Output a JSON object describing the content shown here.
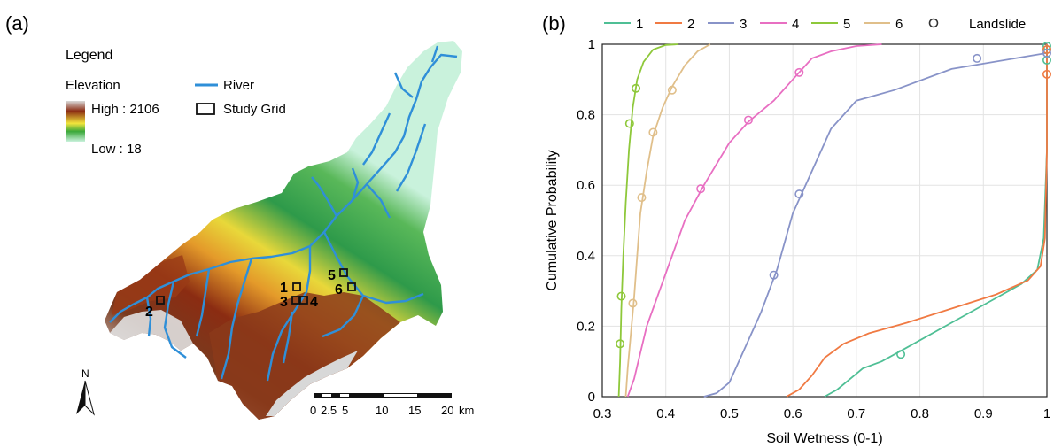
{
  "panel_a": {
    "label": "(a)",
    "legend": {
      "title": "Legend",
      "elevation_title": "Elevation",
      "high_label": "High : 2106",
      "low_label": "Low : 18",
      "river_label": "River",
      "grid_label": "Study Grid"
    },
    "grid_labels": [
      "1",
      "2",
      "3",
      "4",
      "5",
      "6"
    ],
    "north": "N",
    "scalebar": {
      "ticks": [
        "0",
        "2.5",
        "5",
        "10",
        "15",
        "20"
      ],
      "unit": "km"
    },
    "colors": {
      "river": "#2f8fd8",
      "low": "#c9f2dc",
      "mid": "#f2e53c",
      "high": "#8b2c12",
      "peak": "#d9d9d9"
    }
  },
  "panel_b": {
    "label": "(b)",
    "landslide_label": "Landslide"
  },
  "chart_data": {
    "type": "line",
    "title": "",
    "xlabel": "Soil Wetness (0-1)",
    "ylabel": "Cumulative Probability",
    "xlim": [
      0.3,
      1.0
    ],
    "ylim": [
      0,
      1
    ],
    "xticks": [
      "0.3",
      "0.4",
      "0.5",
      "0.6",
      "0.7",
      "0.8",
      "0.9",
      "1"
    ],
    "yticks": [
      "0",
      "0.2",
      "0.4",
      "0.6",
      "0.8",
      "1"
    ],
    "grid": true,
    "legend_position": "top",
    "series": [
      {
        "name": "1",
        "color": "#4fbf95",
        "x": [
          0.65,
          0.67,
          0.69,
          0.71,
          0.74,
          0.77,
          0.8,
          0.84,
          0.88,
          0.92,
          0.96,
          0.985,
          0.995,
          1.0,
          1.0
        ],
        "y": [
          0,
          0.02,
          0.05,
          0.08,
          0.1,
          0.13,
          0.16,
          0.2,
          0.24,
          0.28,
          0.32,
          0.36,
          0.45,
          0.7,
          1.0
        ],
        "landslides": [
          [
            0.77,
            0.12
          ],
          [
            1.0,
            0.955
          ],
          [
            1.0,
            0.985
          ],
          [
            1.0,
            0.995
          ]
        ]
      },
      {
        "name": "2",
        "color": "#f07a43",
        "x": [
          0.59,
          0.61,
          0.63,
          0.65,
          0.68,
          0.72,
          0.78,
          0.85,
          0.92,
          0.97,
          0.99,
          0.997,
          1.0,
          1.0
        ],
        "y": [
          0,
          0.02,
          0.06,
          0.11,
          0.15,
          0.18,
          0.21,
          0.25,
          0.29,
          0.33,
          0.37,
          0.45,
          0.7,
          1.0
        ],
        "landslides": [
          [
            1.0,
            0.915
          ],
          [
            1.0,
            0.985
          ]
        ]
      },
      {
        "name": "3",
        "color": "#8893c8",
        "x": [
          0.46,
          0.48,
          0.5,
          0.52,
          0.55,
          0.575,
          0.6,
          0.63,
          0.66,
          0.7,
          0.76,
          0.85,
          0.95,
          1.0
        ],
        "y": [
          0,
          0.01,
          0.04,
          0.12,
          0.24,
          0.36,
          0.52,
          0.64,
          0.76,
          0.84,
          0.87,
          0.93,
          0.96,
          0.975
        ],
        "landslides": [
          [
            0.57,
            0.345
          ],
          [
            0.61,
            0.575
          ],
          [
            0.89,
            0.96
          ],
          [
            1.0,
            0.975
          ]
        ]
      },
      {
        "name": "4",
        "color": "#e86fc2",
        "x": [
          0.34,
          0.35,
          0.37,
          0.4,
          0.43,
          0.46,
          0.5,
          0.53,
          0.57,
          0.61,
          0.63,
          0.66,
          0.7,
          0.74
        ],
        "y": [
          0,
          0.05,
          0.2,
          0.35,
          0.5,
          0.6,
          0.72,
          0.78,
          0.84,
          0.92,
          0.96,
          0.98,
          0.995,
          1.0
        ],
        "landslides": [
          [
            0.455,
            0.59
          ],
          [
            0.53,
            0.785
          ],
          [
            0.61,
            0.92
          ]
        ]
      },
      {
        "name": "5",
        "color": "#8ec83a",
        "x": [
          0.326,
          0.328,
          0.33,
          0.333,
          0.337,
          0.342,
          0.348,
          0.355,
          0.365,
          0.38,
          0.4,
          0.42
        ],
        "y": [
          0,
          0.1,
          0.25,
          0.4,
          0.55,
          0.7,
          0.82,
          0.9,
          0.95,
          0.985,
          0.998,
          1.0
        ],
        "landslides": [
          [
            0.328,
            0.15
          ],
          [
            0.33,
            0.285
          ],
          [
            0.343,
            0.775
          ],
          [
            0.353,
            0.875
          ]
        ]
      },
      {
        "name": "6",
        "color": "#e0bf8a",
        "x": [
          0.337,
          0.34,
          0.345,
          0.35,
          0.355,
          0.36,
          0.37,
          0.38,
          0.395,
          0.41,
          0.43,
          0.45,
          0.47
        ],
        "y": [
          0,
          0.08,
          0.18,
          0.28,
          0.4,
          0.52,
          0.64,
          0.74,
          0.82,
          0.88,
          0.94,
          0.98,
          1.0
        ],
        "landslides": [
          [
            0.348,
            0.265
          ],
          [
            0.362,
            0.565
          ],
          [
            0.38,
            0.75
          ],
          [
            0.41,
            0.87
          ]
        ]
      }
    ]
  }
}
